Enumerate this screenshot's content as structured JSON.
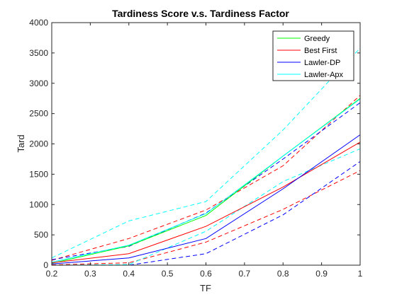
{
  "chart_data": {
    "type": "line",
    "title": "Tardiness Score v.s. Tardiness Factor",
    "xlabel": "TF",
    "ylabel": "Tard",
    "xlim": [
      0.2,
      1.0
    ],
    "ylim": [
      0,
      4000
    ],
    "xticks": [
      0.2,
      0.3,
      0.4,
      0.5,
      0.6,
      0.7,
      0.8,
      0.9,
      1.0
    ],
    "xtick_labels": [
      "0.2",
      "0.3",
      "0.4",
      "0.5",
      "0.6",
      "0.7",
      "0.8",
      "0.9",
      "1"
    ],
    "yticks": [
      0,
      500,
      1000,
      1500,
      2000,
      2500,
      3000,
      3500,
      4000
    ],
    "ytick_labels": [
      "0",
      "500",
      "1000",
      "1500",
      "2000",
      "2500",
      "3000",
      "3500",
      "4000"
    ],
    "grid": false,
    "legend_position": "top-right",
    "x": [
      0.2,
      0.4,
      0.6,
      0.8,
      1.0
    ],
    "series": [
      {
        "name": "Greedy",
        "color": "#00ff00",
        "style": "solid",
        "values": [
          30,
          320,
          820,
          1800,
          2750
        ]
      },
      {
        "name": "Best First",
        "color": "#ff0000",
        "style": "solid",
        "values": [
          40,
          190,
          640,
          1290,
          2030
        ]
      },
      {
        "name": "Lawler-DP",
        "color": "#0000ff",
        "style": "solid",
        "values": [
          20,
          120,
          440,
          1260,
          2150
        ]
      },
      {
        "name": "Lawler-Apx",
        "color": "#00ffff",
        "style": "solid",
        "values": [
          50,
          330,
          850,
          1800,
          2740
        ]
      }
    ],
    "bands": [
      {
        "color": "#ff0000",
        "style": "dashed",
        "values": [
          80,
          440,
          910,
          1640,
          2800
        ]
      },
      {
        "color": "#ff0000",
        "style": "dashed",
        "values": [
          5,
          40,
          380,
          920,
          1560
        ]
      },
      {
        "color": "#0000ff",
        "style": "dashed",
        "values": [
          90,
          310,
          860,
          1750,
          2680
        ]
      },
      {
        "color": "#0000ff",
        "style": "dashed",
        "values": [
          0,
          0,
          190,
          830,
          1710
        ]
      },
      {
        "color": "#00ffff",
        "style": "dashed",
        "values": [
          120,
          730,
          1050,
          2230,
          3580
        ]
      },
      {
        "color": "#00ffff",
        "style": "dashed",
        "values": [
          0,
          10,
          560,
          1380,
          1920
        ]
      }
    ]
  }
}
